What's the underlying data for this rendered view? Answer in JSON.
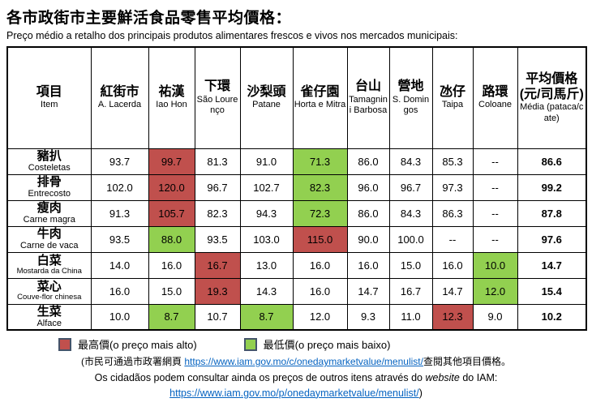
{
  "title": "各市政街市主要鮮活食品零售平均價格：",
  "subtitle": "Preço médio a retalho dos principais produtos alimentares frescos e vivos nos mercados municipais:",
  "colors": {
    "highest": "#C0504D",
    "lowest": "#92D050",
    "link": "#0563C1",
    "legend_border": "#44546A",
    "grid": "#000000"
  },
  "chart_data": {
    "type": "table",
    "title": "各市政街市主要鮮活食品零售平均價格 / Preço médio a retalho dos principais produtos alimentares frescos e vivos nos mercados municipais",
    "unit": "元/司馬斤 (pataca/cate)",
    "columns": [
      "紅街市 A. Lacerda",
      "祐漢 Iao Hon",
      "下環 São Lourenço",
      "沙梨頭 Patane",
      "雀仔園 Horta e Mitra",
      "台山 Tamagnini Barbosa",
      "營地 S. Domingos",
      "氹仔 Taipa",
      "路環 Coloane",
      "平均價格 Média"
    ],
    "rows": [
      "豬扒 Costeletas",
      "排骨 Entrecosto",
      "瘦肉 Carne magra",
      "牛肉 Carne de vaca",
      "白菜 Mostarda da China",
      "菜心 Couve-flor chinesa",
      "生菜 Alface"
    ],
    "values": [
      [
        93.7,
        99.7,
        81.3,
        91.0,
        71.3,
        86.0,
        84.3,
        85.3,
        null,
        86.6
      ],
      [
        102.0,
        120.0,
        96.7,
        102.7,
        82.3,
        96.0,
        96.7,
        97.3,
        null,
        99.2
      ],
      [
        91.3,
        105.7,
        82.3,
        94.3,
        72.3,
        86.0,
        84.3,
        86.3,
        null,
        87.8
      ],
      [
        93.5,
        88.0,
        93.5,
        103.0,
        115.0,
        90.0,
        100.0,
        null,
        null,
        97.6
      ],
      [
        14.0,
        16.0,
        16.7,
        13.0,
        16.0,
        16.0,
        15.0,
        16.0,
        10.0,
        14.7
      ],
      [
        16.0,
        15.0,
        19.3,
        14.3,
        16.0,
        14.7,
        16.7,
        14.7,
        12.0,
        15.4
      ],
      [
        10.0,
        8.7,
        10.7,
        8.7,
        12.0,
        9.3,
        11.0,
        12.3,
        9.0,
        10.2
      ]
    ]
  },
  "table": {
    "item_col": {
      "zh": "項目",
      "sub": "Item"
    },
    "market_cols": [
      {
        "zh": "紅街市",
        "sub": "A. Lacerda"
      },
      {
        "zh": "祐漢",
        "sub": "Iao Hon"
      },
      {
        "zh": "下環",
        "sub": "São Lourenço"
      },
      {
        "zh": "沙梨頭",
        "sub": "Patane"
      },
      {
        "zh": "雀仔園",
        "sub": "Horta e Mitra"
      },
      {
        "zh": "台山",
        "sub": "Tamagnini Barbosa"
      },
      {
        "zh": "營地",
        "sub": "S. Domingos"
      },
      {
        "zh": "氹仔",
        "sub": "Taipa"
      },
      {
        "zh": "路環",
        "sub": "Coloane"
      }
    ],
    "avg_col": {
      "zh": "平均價格(元/司馬斤)",
      "sub": "Média (pataca/cate)"
    },
    "rows": [
      {
        "zh": "豬扒",
        "pt": "Costeletas",
        "values": [
          "93.7",
          "99.7",
          "81.3",
          "91.0",
          "71.3",
          "86.0",
          "84.3",
          "85.3",
          "--"
        ],
        "marks": [
          "",
          "high",
          "",
          "",
          "low",
          "",
          "",
          "",
          ""
        ],
        "avg": "86.6"
      },
      {
        "zh": "排骨",
        "pt": "Entrecosto",
        "values": [
          "102.0",
          "120.0",
          "96.7",
          "102.7",
          "82.3",
          "96.0",
          "96.7",
          "97.3",
          "--"
        ],
        "marks": [
          "",
          "high",
          "",
          "",
          "low",
          "",
          "",
          "",
          ""
        ],
        "avg": "99.2"
      },
      {
        "zh": "瘦肉",
        "pt": "Carne magra",
        "values": [
          "91.3",
          "105.7",
          "82.3",
          "94.3",
          "72.3",
          "86.0",
          "84.3",
          "86.3",
          "--"
        ],
        "marks": [
          "",
          "high",
          "",
          "",
          "low",
          "",
          "",
          "",
          ""
        ],
        "avg": "87.8"
      },
      {
        "zh": "牛肉",
        "pt": "Carne de vaca",
        "values": [
          "93.5",
          "88.0",
          "93.5",
          "103.0",
          "115.0",
          "90.0",
          "100.0",
          "--",
          "--"
        ],
        "marks": [
          "",
          "low",
          "",
          "",
          "high",
          "",
          "",
          "",
          ""
        ],
        "avg": "97.6"
      },
      {
        "zh": "白菜",
        "pt": "Mostarda da China",
        "values": [
          "14.0",
          "16.0",
          "16.7",
          "13.0",
          "16.0",
          "16.0",
          "15.0",
          "16.0",
          "10.0"
        ],
        "marks": [
          "",
          "",
          "high",
          "",
          "",
          "",
          "",
          "",
          "low"
        ],
        "avg": "14.7"
      },
      {
        "zh": "菜心",
        "pt": "Couve-flor chinesa",
        "values": [
          "16.0",
          "15.0",
          "19.3",
          "14.3",
          "16.0",
          "14.7",
          "16.7",
          "14.7",
          "12.0"
        ],
        "marks": [
          "",
          "",
          "high",
          "",
          "",
          "",
          "",
          "",
          "low"
        ],
        "avg": "15.4"
      },
      {
        "zh": "生菜",
        "pt": "Alface",
        "values": [
          "10.0",
          "8.7",
          "10.7",
          "8.7",
          "12.0",
          "9.3",
          "11.0",
          "12.3",
          "9.0"
        ],
        "marks": [
          "",
          "low",
          "",
          "low",
          "",
          "",
          "",
          "high",
          ""
        ],
        "avg": "10.2"
      }
    ]
  },
  "legend": [
    {
      "type": "high",
      "label": "最高價(o preço mais alto)"
    },
    {
      "type": "low",
      "label": "最低價(o preço mais baixo)"
    }
  ],
  "footer": {
    "line1_prefix": "(市民可通過市政署網頁 ",
    "line1_link": "https://www.iam.gov.mo/c/onedaymarketvalue/menulist/",
    "line1_suffix": "查閱其他項目價格。",
    "line2_pre": "Os cidadãos podem consultar ainda os preços de outros itens através do ",
    "line2_italic": "website",
    "line2_post": " do IAM:",
    "line3_link": "https://www.iam.gov.mo/p/onedaymarketvalue/menulist/",
    "line3_suffix": ")"
  }
}
